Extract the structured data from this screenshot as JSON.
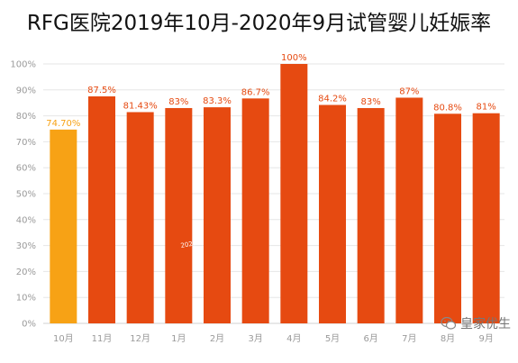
{
  "chart_data": {
    "type": "bar",
    "title": "RFG医院2019年10月-2020年9月试管婴儿妊娠率",
    "categories": [
      "10月",
      "11月",
      "12月",
      "1月",
      "2月",
      "3月",
      "4月",
      "5月",
      "6月",
      "7月",
      "8月",
      "9月"
    ],
    "values": [
      74.7,
      87.5,
      81.43,
      83,
      83.3,
      86.7,
      100,
      84.2,
      83,
      87,
      80.8,
      81
    ],
    "data_labels": [
      "74.70%",
      "87.5%",
      "81.43%",
      "83%",
      "83.3%",
      "86.7%",
      "100%",
      "84.2%",
      "83%",
      "87%",
      "80.8%",
      "81%"
    ],
    "ylim": [
      0,
      100
    ],
    "yticks": [
      "0%",
      "10%",
      "20%",
      "30%",
      "40%",
      "50%",
      "60%",
      "70%",
      "80%",
      "90%",
      "100%"
    ],
    "grid": true,
    "colors": {
      "highlight_bar": "#F7A215",
      "bar": "#E64A11",
      "label": "#E64A11",
      "highlight_label": "#F7A215",
      "grid": "#e6e6e6"
    },
    "annotation": "2020年"
  },
  "watermark": {
    "icon": "wechat-icon",
    "text": "皇家优生"
  }
}
